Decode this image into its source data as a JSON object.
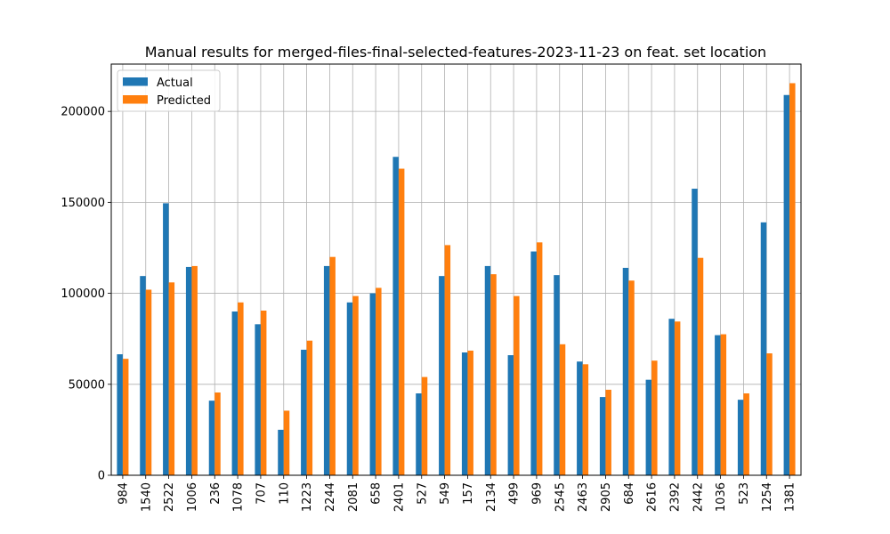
{
  "chart_data": {
    "type": "bar",
    "title": "Manual results for merged-files-final-selected-features-2023-11-23 on feat. set location",
    "xlabel": "",
    "ylabel": "",
    "categories": [
      "984",
      "1540",
      "2522",
      "1006",
      "236",
      "1078",
      "707",
      "110",
      "1223",
      "2244",
      "2081",
      "658",
      "2401",
      "527",
      "549",
      "157",
      "2134",
      "499",
      "969",
      "2545",
      "2463",
      "2905",
      "684",
      "2616",
      "2392",
      "2442",
      "1036",
      "523",
      "1254",
      "1381"
    ],
    "series": [
      {
        "name": "Actual",
        "color": "#1f77b4",
        "values": [
          66500,
          109500,
          149500,
          114500,
          41000,
          90000,
          83000,
          25000,
          69000,
          115000,
          95000,
          100000,
          175000,
          45000,
          109500,
          67500,
          115000,
          66000,
          123000,
          110000,
          62500,
          43000,
          114000,
          52500,
          86000,
          157500,
          77000,
          41500,
          139000,
          209000
        ]
      },
      {
        "name": "Predicted",
        "color": "#ff7f0e",
        "values": [
          64000,
          102000,
          106000,
          115000,
          45500,
          95000,
          90500,
          35500,
          74000,
          120000,
          98500,
          103000,
          168500,
          54000,
          126500,
          68500,
          110500,
          98500,
          128000,
          72000,
          61000,
          47000,
          107000,
          63000,
          84500,
          119500,
          77500,
          45000,
          67000,
          215500
        ]
      }
    ],
    "yticks": [
      "0",
      "50000",
      "100000",
      "150000",
      "200000"
    ],
    "ylim": [
      0,
      226000
    ],
    "grid": true,
    "legend_position": "top-left"
  }
}
